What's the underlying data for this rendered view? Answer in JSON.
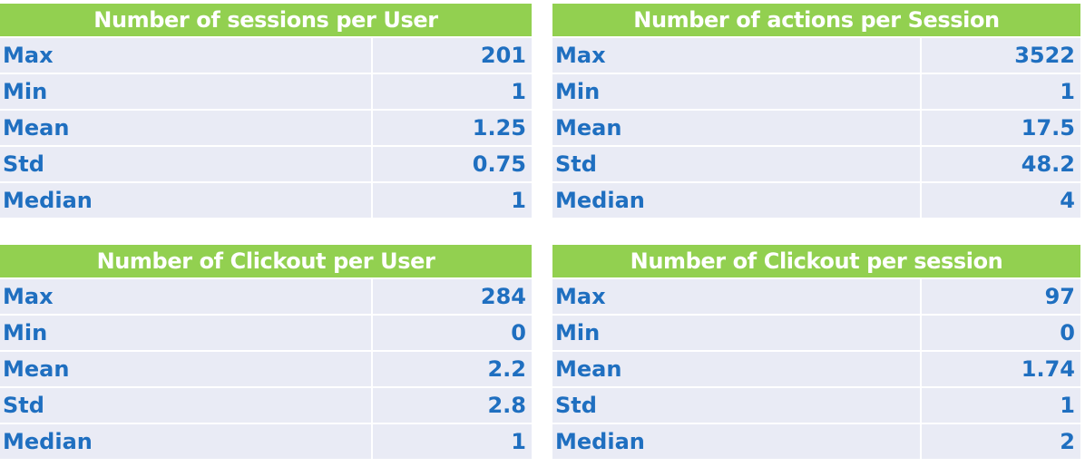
{
  "tables": [
    {
      "title": "Number of sessions per User",
      "rows": [
        {
          "label": "Max",
          "value": "201"
        },
        {
          "label": "Min",
          "value": "1"
        },
        {
          "label": "Mean",
          "value": "1.25"
        },
        {
          "label": "Std",
          "value": "0.75"
        },
        {
          "label": "Median",
          "value": "1"
        }
      ]
    },
    {
      "title": "Number of actions per Session",
      "rows": [
        {
          "label": "Max",
          "value": "3522"
        },
        {
          "label": "Min",
          "value": "1"
        },
        {
          "label": "Mean",
          "value": "17.5"
        },
        {
          "label": "Std",
          "value": "48.2"
        },
        {
          "label": "Median",
          "value": "4"
        }
      ]
    },
    {
      "title": "Number of Clickout per User",
      "rows": [
        {
          "label": "Max",
          "value": "284"
        },
        {
          "label": "Min",
          "value": "0"
        },
        {
          "label": "Mean",
          "value": "2.2"
        },
        {
          "label": "Std",
          "value": "2.8"
        },
        {
          "label": "Median",
          "value": "1"
        }
      ]
    },
    {
      "title": "Number of Clickout per session",
      "rows": [
        {
          "label": "Max",
          "value": "97"
        },
        {
          "label": "Min",
          "value": "0"
        },
        {
          "label": "Mean",
          "value": "1.74"
        },
        {
          "label": "Std",
          "value": "1"
        },
        {
          "label": "Median",
          "value": "2"
        }
      ]
    }
  ],
  "colors": {
    "header_bg": "#92d050",
    "header_text": "#ffffff",
    "cell_bg": "#e9ebf5",
    "cell_text": "#1f6fc0"
  }
}
